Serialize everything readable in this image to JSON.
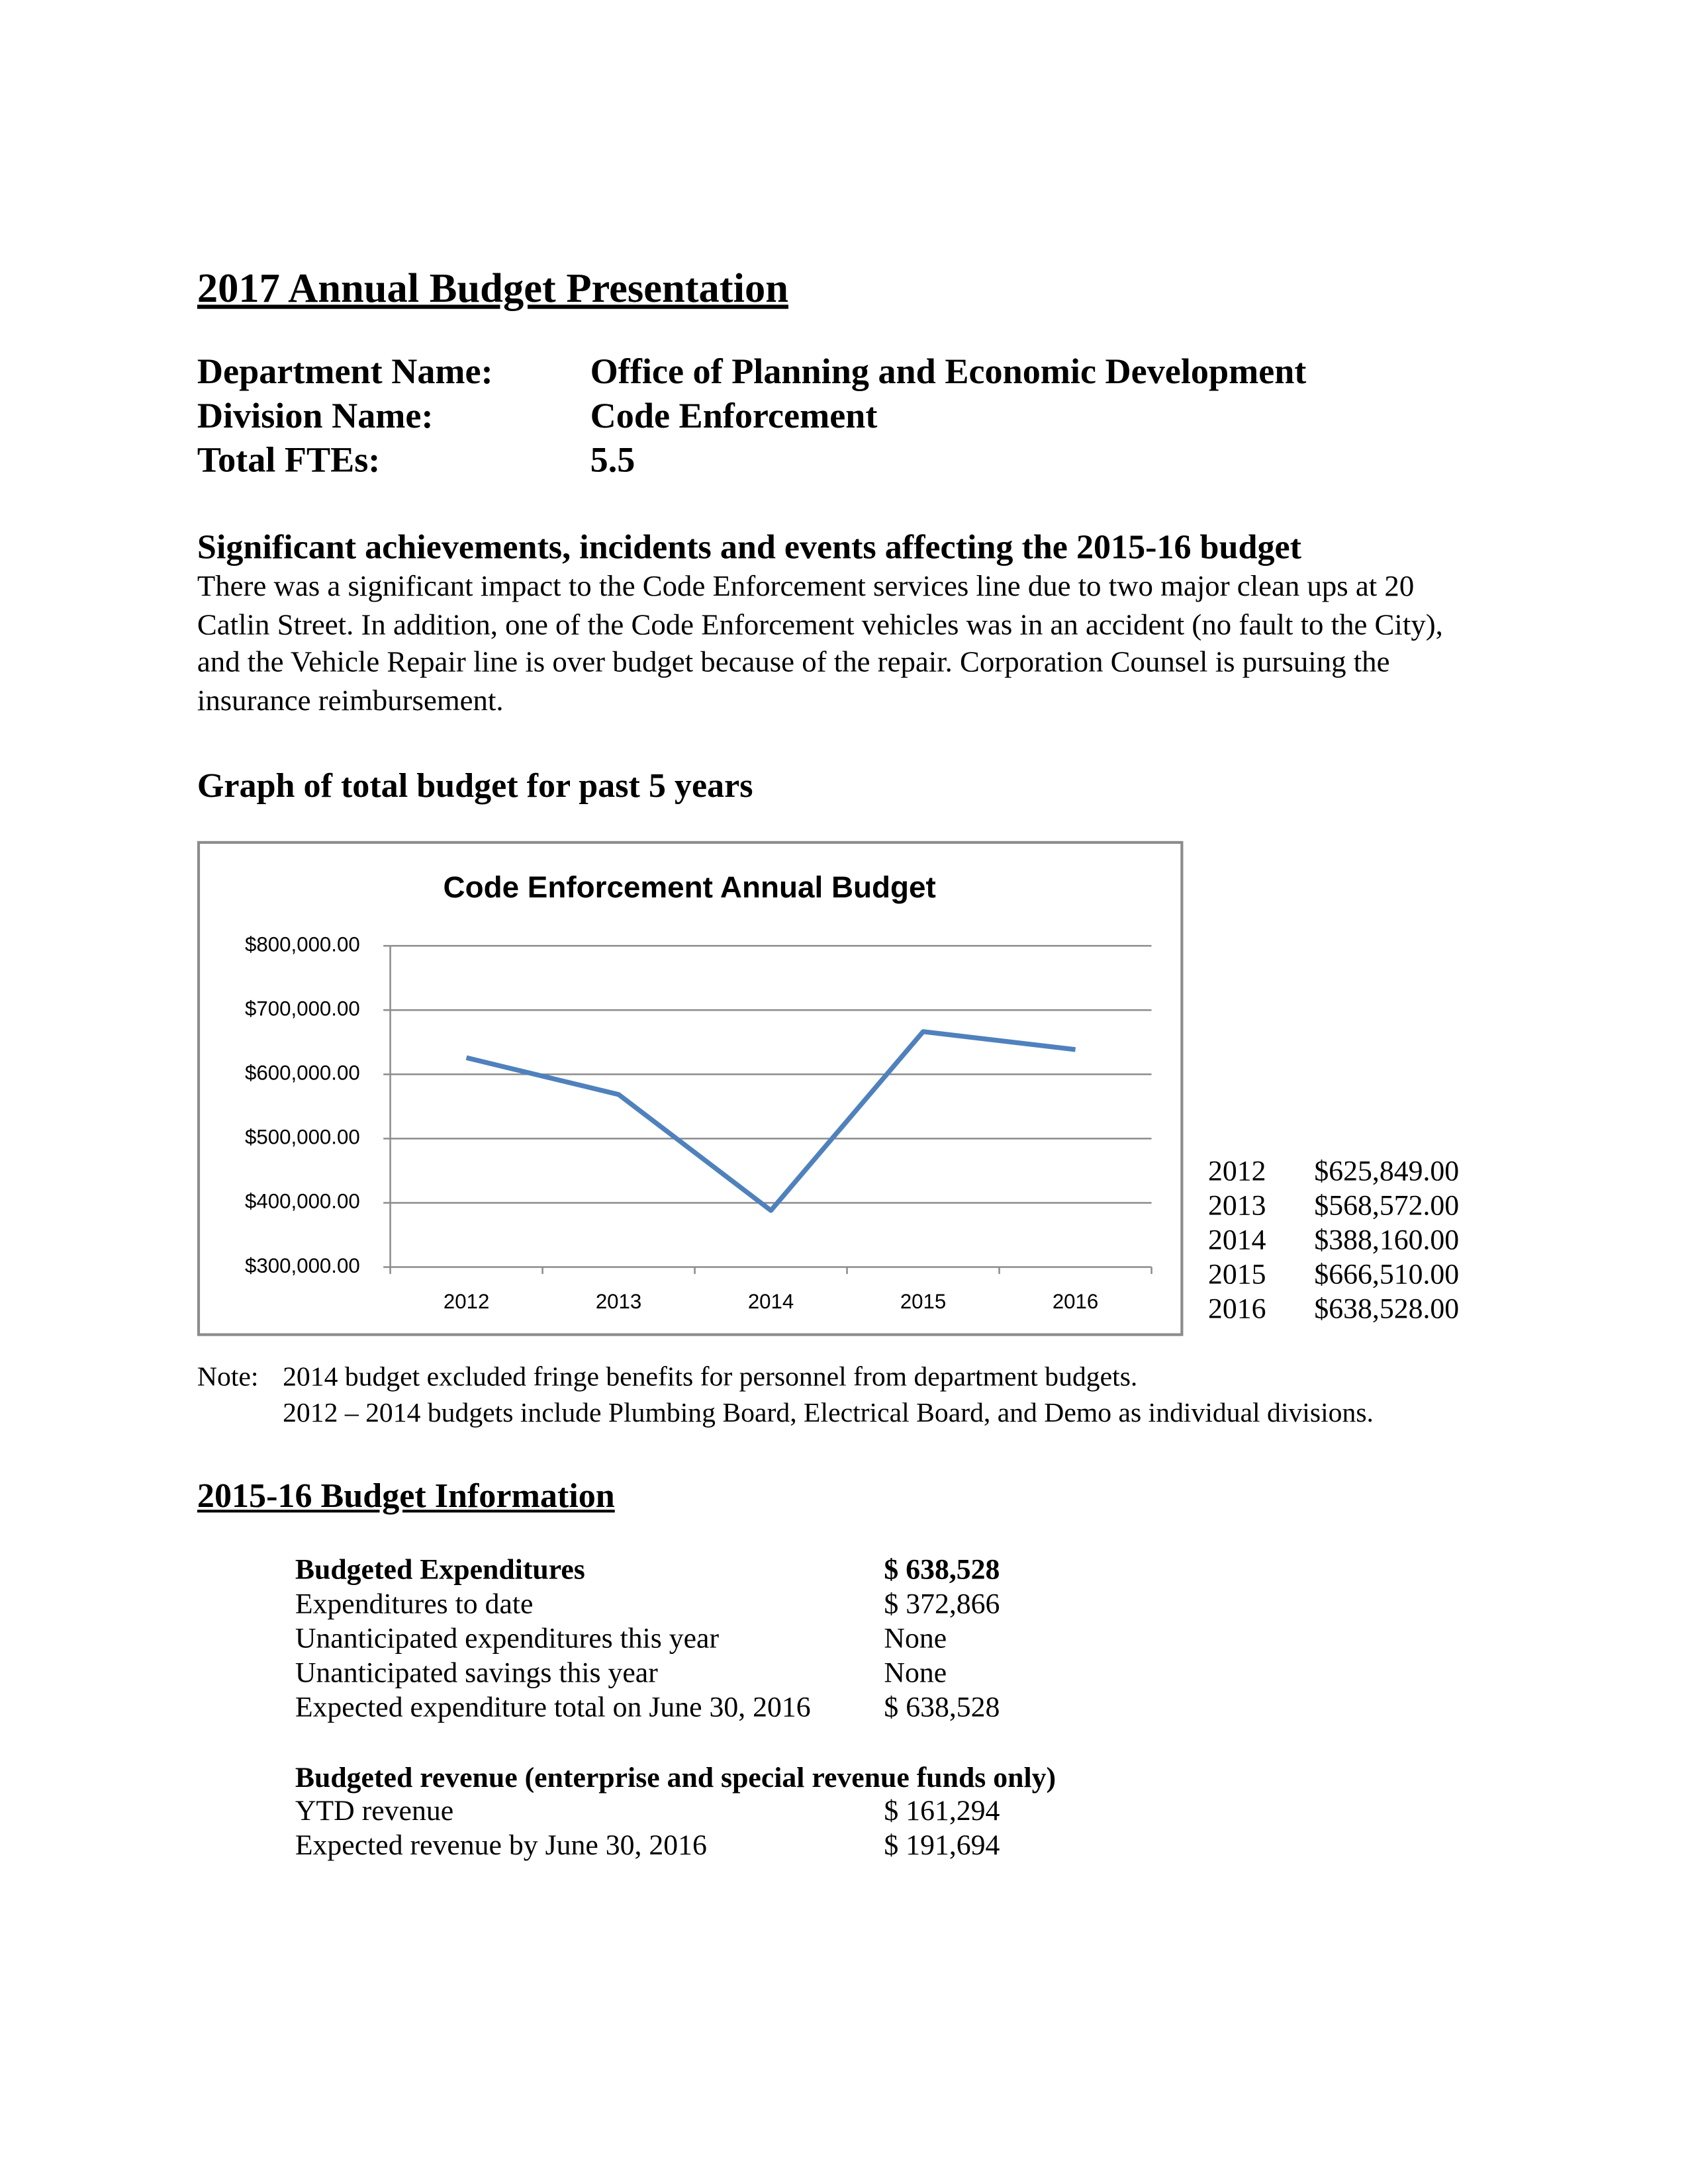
{
  "header": {
    "title": "2017 Annual Budget Presentation"
  },
  "fields": [
    {
      "label": "Department Name:",
      "value": "Office of Planning and Economic Development"
    },
    {
      "label": "Division Name:",
      "value": "Code Enforcement"
    },
    {
      "label": "Total FTEs:",
      "value": "5.5"
    }
  ],
  "achievements": {
    "heading": "Significant achievements, incidents and events affecting the 2015-16 budget",
    "text": "There was a significant impact to the Code Enforcement services line due to two major clean ups at 20 Catlin Street.  In addition, one of the Code Enforcement vehicles was in an accident (no fault to the City), and the Vehicle Repair line is over budget because of the repair.  Corporation Counsel is pursuing the insurance reimbursement."
  },
  "graph": {
    "heading": "Graph of total budget for past 5 years"
  },
  "chart_data": {
    "type": "line",
    "title": "Code Enforcement Annual Budget",
    "categories": [
      "2012",
      "2013",
      "2014",
      "2015",
      "2016"
    ],
    "values": [
      625849,
      568572,
      388160,
      666510,
      638528
    ],
    "value_labels": [
      "$625,849.00",
      "$568,572.00",
      "$388,160.00",
      "$666,510.00",
      "$638,528.00"
    ],
    "color": "#4f81bd",
    "ylim": [
      300000,
      800000
    ],
    "yticks": [
      {
        "value": 300000,
        "label": "$300,000.00"
      },
      {
        "value": 400000,
        "label": "$400,000.00"
      },
      {
        "value": 500000,
        "label": "$500,000.00"
      },
      {
        "value": 600000,
        "label": "$600,000.00"
      },
      {
        "value": 700000,
        "label": "$700,000.00"
      },
      {
        "value": 800000,
        "label": "$800,000.00"
      }
    ],
    "grid": true
  },
  "notes": {
    "label": "Note:",
    "lines": [
      "2014 budget excluded fringe benefits for personnel from department budgets.",
      "2012 – 2014 budgets include Plumbing Board, Electrical Board, and Demo as individual divisions."
    ]
  },
  "budget_info": {
    "heading": "2015-16 Budget Information",
    "expenditures": {
      "heading": "Budgeted Expenditures",
      "value": "$ 638,528",
      "rows": [
        [
          "Expenditures to date",
          "$ 372,866"
        ],
        [
          "Unanticipated expenditures this year",
          "None"
        ],
        [
          "Unanticipated savings this year",
          "None"
        ],
        [
          "Expected expenditure total on June 30, 2016",
          "$ 638,528"
        ]
      ]
    },
    "revenue": {
      "heading": "Budgeted revenue (enterprise and special revenue funds only)",
      "rows": [
        [
          "YTD revenue",
          "$ 161,294"
        ],
        [
          "Expected revenue by June 30, 2016",
          "$ 191,694"
        ]
      ]
    }
  }
}
